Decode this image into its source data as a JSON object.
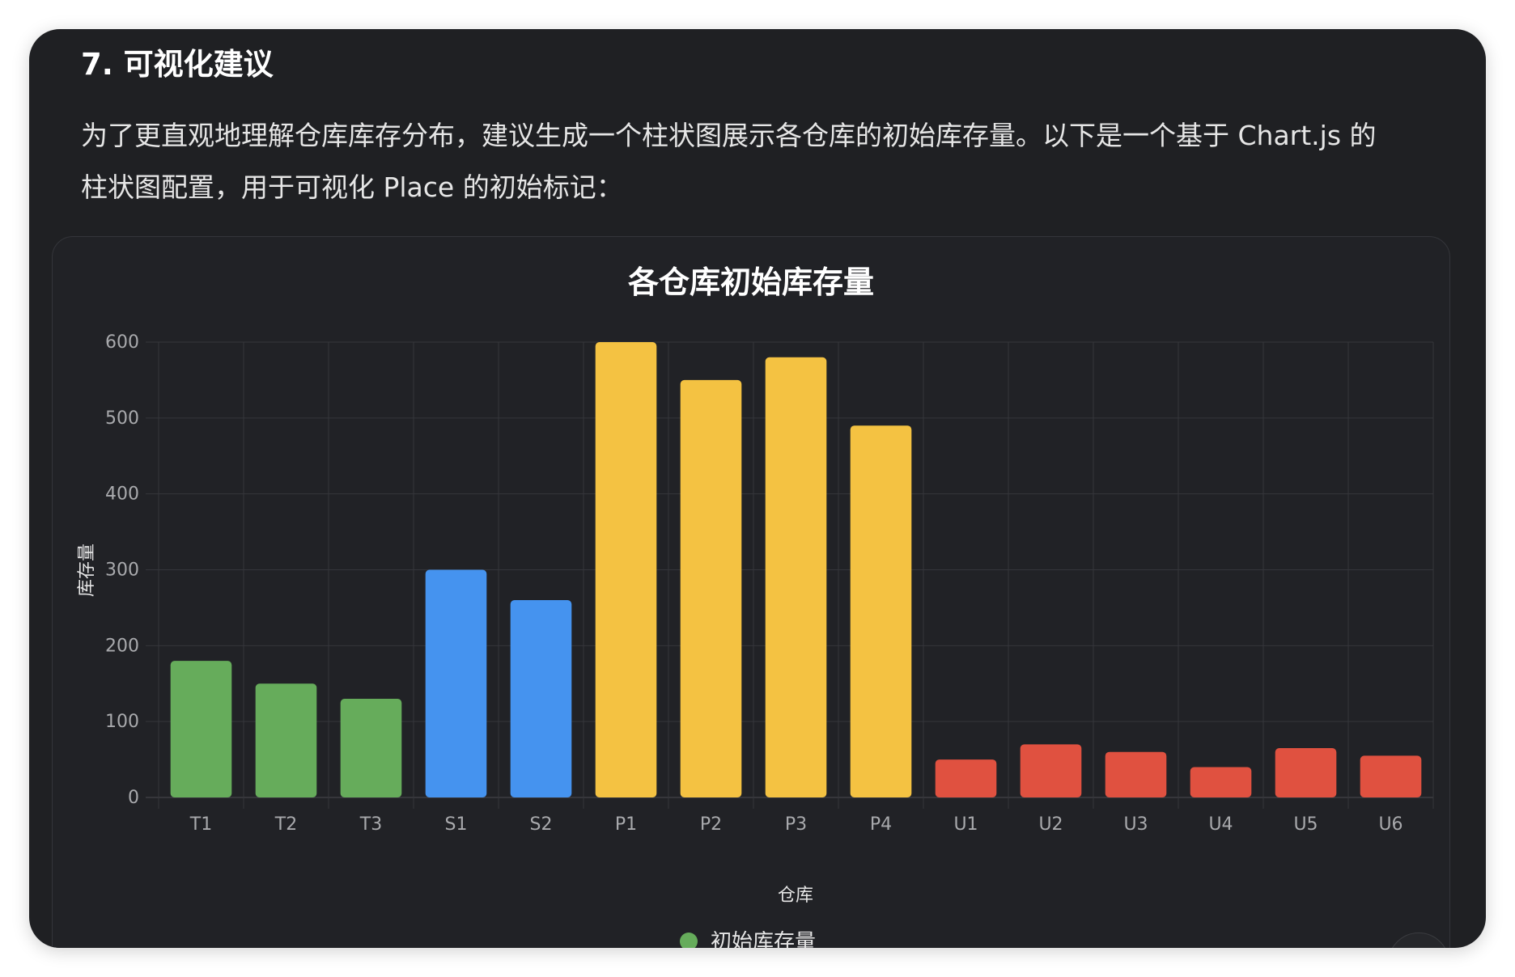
{
  "section": {
    "heading": "7. 可视化建议",
    "paragraph": "为了更直观地理解仓库库存分布，建议生成一个柱状图展示各仓库的初始库存量。以下是一个基于 Chart.js 的柱状图配置，用于可视化 Place 的初始标记："
  },
  "colors": {
    "T": "#66ac5b",
    "S": "#4593ef",
    "P": "#f4c242",
    "U": "#e05140",
    "legend_marker": "#66ac5b"
  },
  "chart_data": {
    "type": "bar",
    "title": "各仓库初始库存量",
    "xlabel": "仓库",
    "ylabel": "库存量",
    "ylim": [
      0,
      600
    ],
    "yticks": [
      0,
      100,
      200,
      300,
      400,
      500,
      600
    ],
    "grid": true,
    "legend_position": "bottom",
    "categories": [
      "T1",
      "T2",
      "T3",
      "S1",
      "S2",
      "P1",
      "P2",
      "P3",
      "P4",
      "U1",
      "U2",
      "U3",
      "U4",
      "U5",
      "U6"
    ],
    "series": [
      {
        "name": "初始库存量",
        "values": [
          180,
          150,
          130,
          300,
          260,
          600,
          550,
          580,
          490,
          50,
          70,
          60,
          40,
          65,
          55
        ],
        "colors": [
          "#66ac5b",
          "#66ac5b",
          "#66ac5b",
          "#4593ef",
          "#4593ef",
          "#f4c242",
          "#f4c242",
          "#f4c242",
          "#f4c242",
          "#e05140",
          "#e05140",
          "#e05140",
          "#e05140",
          "#e05140",
          "#e05140"
        ]
      }
    ]
  }
}
